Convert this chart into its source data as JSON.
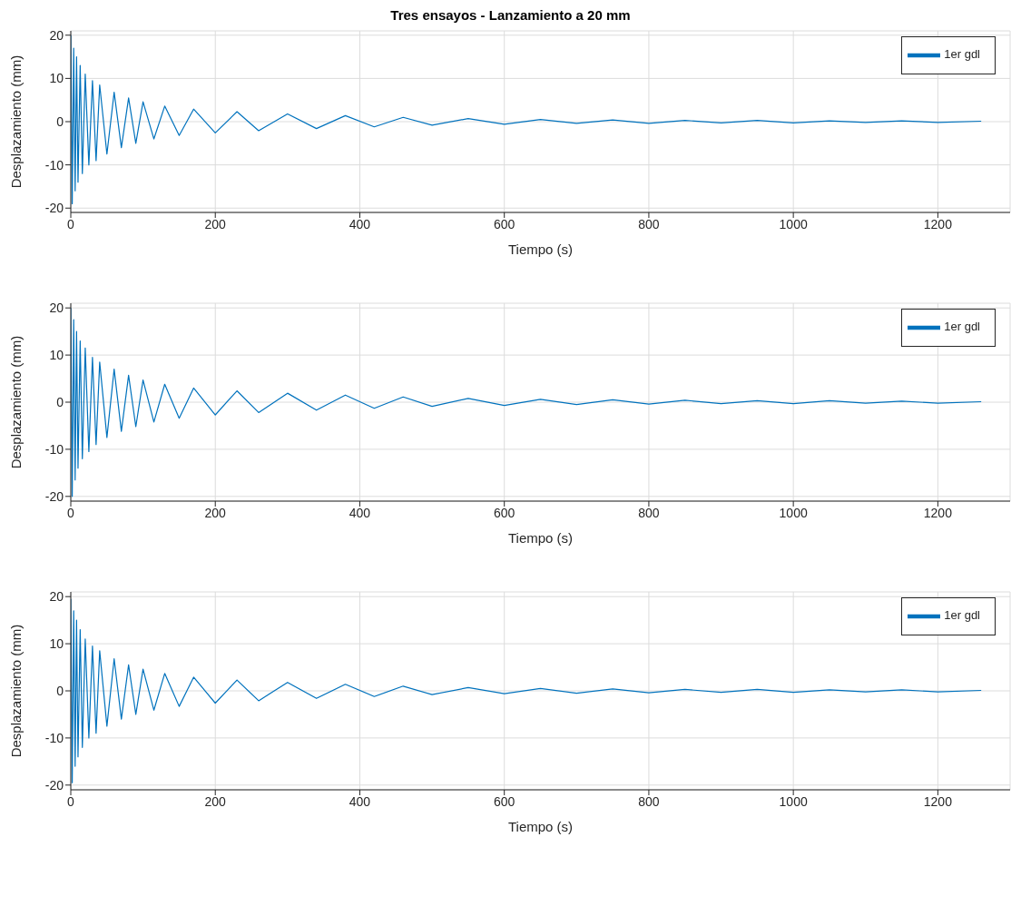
{
  "chart_data": [
    {
      "type": "line",
      "title": "Tres ensayos - Lanzamiento a 20 mm",
      "xlabel": "Tiempo (s)",
      "ylabel": "Desplazamiento (mm)",
      "xlim": [
        0,
        1300
      ],
      "xticks": [
        0,
        200,
        400,
        600,
        800,
        1000,
        1200
      ],
      "ylim": [
        -21,
        21
      ],
      "yticks": [
        -20,
        -10,
        0,
        10,
        20
      ],
      "grid": true,
      "legend": "top right",
      "marker": "none",
      "line_style": "solid",
      "x": [
        0,
        2,
        4,
        6,
        8,
        10,
        13,
        16,
        20,
        25,
        30,
        35,
        40,
        50,
        60,
        70,
        80,
        90,
        100,
        115,
        130,
        150,
        170,
        200,
        230,
        260,
        300,
        340,
        380,
        420,
        460,
        500,
        550,
        600,
        650,
        700,
        750,
        800,
        850,
        900,
        950,
        1000,
        1050,
        1100,
        1150,
        1200,
        1260
      ],
      "series": [
        {
          "name": "1er gdl",
          "color": "#0072bd",
          "values": [
            20,
            -19,
            17,
            -16,
            15,
            -14,
            13,
            -12,
            11,
            -10,
            9.5,
            -9,
            8.5,
            -7.5,
            6.8,
            -6,
            5.5,
            -5,
            4.6,
            -4,
            3.6,
            -3.2,
            2.9,
            -2.6,
            2.3,
            -2.1,
            1.8,
            -1.6,
            1.4,
            -1.2,
            1.0,
            -0.8,
            0.7,
            -0.6,
            0.5,
            -0.4,
            0.4,
            -0.4,
            0.3,
            -0.3,
            0.3,
            -0.3,
            0.2,
            -0.2,
            0.2,
            -0.2,
            0.1
          ]
        }
      ]
    },
    {
      "type": "line",
      "xlabel": "Tiempo (s)",
      "ylabel": "Desplazamiento (mm)",
      "xlim": [
        0,
        1300
      ],
      "xticks": [
        0,
        200,
        400,
        600,
        800,
        1000,
        1200
      ],
      "ylim": [
        -21,
        21
      ],
      "yticks": [
        -20,
        -10,
        0,
        10,
        20
      ],
      "grid": true,
      "legend": "top right",
      "marker": "none",
      "line_style": "solid",
      "x": [
        0,
        2,
        4,
        6,
        8,
        10,
        13,
        16,
        20,
        25,
        30,
        35,
        40,
        50,
        60,
        70,
        80,
        90,
        100,
        115,
        130,
        150,
        170,
        200,
        230,
        260,
        300,
        340,
        380,
        420,
        460,
        500,
        550,
        600,
        650,
        700,
        750,
        800,
        850,
        900,
        950,
        1000,
        1050,
        1100,
        1150,
        1200,
        1260
      ],
      "series": [
        {
          "name": "1er gdl",
          "color": "#0072bd",
          "values": [
            20,
            -20,
            17.5,
            -16.5,
            15,
            -14,
            13,
            -12,
            11.5,
            -10.5,
            9.5,
            -9,
            8.5,
            -7.5,
            7,
            -6.2,
            5.7,
            -5.2,
            4.7,
            -4.2,
            3.8,
            -3.4,
            3.0,
            -2.7,
            2.4,
            -2.2,
            1.9,
            -1.7,
            1.5,
            -1.3,
            1.1,
            -0.9,
            0.8,
            -0.7,
            0.6,
            -0.5,
            0.5,
            -0.4,
            0.4,
            -0.3,
            0.3,
            -0.3,
            0.3,
            -0.2,
            0.2,
            -0.2,
            0.1
          ]
        }
      ]
    },
    {
      "type": "line",
      "xlabel": "Tiempo (s)",
      "ylabel": "Desplazamiento (mm)",
      "xlim": [
        0,
        1300
      ],
      "xticks": [
        0,
        200,
        400,
        600,
        800,
        1000,
        1200
      ],
      "ylim": [
        -21,
        21
      ],
      "yticks": [
        -20,
        -10,
        0,
        10,
        20
      ],
      "grid": true,
      "legend": "top right",
      "marker": "none",
      "line_style": "solid",
      "x": [
        0,
        2,
        4,
        6,
        8,
        10,
        13,
        16,
        20,
        25,
        30,
        35,
        40,
        50,
        60,
        70,
        80,
        90,
        100,
        115,
        130,
        150,
        170,
        200,
        230,
        260,
        300,
        340,
        380,
        420,
        460,
        500,
        550,
        600,
        650,
        700,
        750,
        800,
        850,
        900,
        950,
        1000,
        1050,
        1100,
        1150,
        1200,
        1260
      ],
      "series": [
        {
          "name": "1er gdl",
          "color": "#0072bd",
          "values": [
            19.5,
            -19.5,
            17,
            -16,
            15,
            -14,
            13,
            -12,
            11,
            -10,
            9.5,
            -9,
            8.5,
            -7.5,
            6.8,
            -6,
            5.5,
            -5,
            4.6,
            -4.1,
            3.7,
            -3.3,
            2.9,
            -2.6,
            2.3,
            -2.1,
            1.8,
            -1.6,
            1.4,
            -1.2,
            1.0,
            -0.8,
            0.7,
            -0.6,
            0.5,
            -0.5,
            0.4,
            -0.4,
            0.3,
            -0.3,
            0.3,
            -0.3,
            0.2,
            -0.2,
            0.2,
            -0.2,
            0.1
          ]
        }
      ]
    }
  ]
}
